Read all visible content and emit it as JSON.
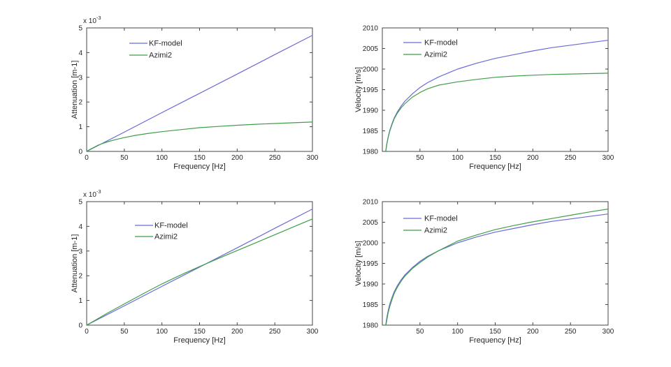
{
  "figure": {
    "kind": "matlab-style figure, 2x2 subplots, no titles, white background",
    "background": "#ffffff"
  },
  "palette": {
    "kf_color": "#6a6ad8",
    "azimi_color": "#3f9e4a",
    "axis_color": "#454545",
    "text_color": "#262626"
  },
  "chart_data": [
    {
      "id": "attenuation-top-left",
      "type": "line",
      "title": "",
      "xlabel": "Frequency [Hz]",
      "ylabel": "Attenuation [m-1]",
      "y_exponent": {
        "base": "x 10",
        "sup": "-3"
      },
      "xlim": [
        0,
        300
      ],
      "ylim": [
        0,
        5
      ],
      "xticks": [
        0,
        50,
        100,
        150,
        200,
        250,
        300
      ],
      "yticks": [
        0,
        1,
        2,
        3,
        4,
        5
      ],
      "grid": false,
      "legend_position": "upper-left-inside-no-box",
      "legend": [
        "KF-model",
        "Azimi2"
      ],
      "series": [
        {
          "name": "KF-model",
          "color_key": "kf_color",
          "x": [
            0,
            50,
            100,
            150,
            200,
            250,
            300
          ],
          "y": [
            0,
            0.78,
            1.57,
            2.35,
            3.13,
            3.92,
            4.7
          ]
        },
        {
          "name": "Azimi2",
          "color_key": "azimi_color",
          "x": [
            0,
            5,
            10,
            15,
            20,
            30,
            40,
            50,
            65,
            80,
            100,
            125,
            150,
            175,
            200,
            225,
            250,
            275,
            300
          ],
          "y": [
            0,
            0.09,
            0.17,
            0.25,
            0.31,
            0.41,
            0.49,
            0.56,
            0.65,
            0.72,
            0.8,
            0.88,
            0.96,
            1.01,
            1.06,
            1.1,
            1.13,
            1.16,
            1.19
          ]
        }
      ]
    },
    {
      "id": "velocity-top-right",
      "type": "line",
      "title": "",
      "xlabel": "Frequency [Hz]",
      "ylabel": "Velocity [m/s]",
      "y_exponent": null,
      "xlim": [
        0,
        300
      ],
      "ylim": [
        1980,
        2010
      ],
      "xticks": [
        50,
        100,
        150,
        200,
        250,
        300
      ],
      "yticks": [
        1980,
        1985,
        1990,
        1995,
        2000,
        2005,
        2010
      ],
      "grid": false,
      "legend_position": "upper-left-inside-no-box",
      "legend": [
        "KF-model",
        "Azimi2"
      ],
      "series": [
        {
          "name": "KF-model",
          "color_key": "kf_color",
          "x": [
            4.5,
            5,
            6,
            8,
            10,
            13,
            16,
            20,
            25,
            30,
            40,
            50,
            60,
            75,
            100,
            125,
            150,
            175,
            200,
            225,
            250,
            275,
            300
          ],
          "y": [
            1980.0,
            1980.7,
            1981.9,
            1983.7,
            1985.2,
            1986.8,
            1988.2,
            1989.6,
            1991.0,
            1992.2,
            1994.0,
            1995.5,
            1996.7,
            1998.1,
            2000.0,
            2001.4,
            2002.6,
            2003.5,
            2004.4,
            2005.2,
            2005.8,
            2006.4,
            2007.0
          ]
        },
        {
          "name": "Azimi2",
          "color_key": "azimi_color",
          "x": [
            4.5,
            5,
            6,
            8,
            10,
            13,
            16,
            20,
            25,
            30,
            40,
            50,
            60,
            75,
            100,
            125,
            150,
            175,
            200,
            225,
            250,
            275,
            300
          ],
          "y": [
            1980.0,
            1980.6,
            1981.8,
            1983.6,
            1985.0,
            1986.6,
            1988.0,
            1989.3,
            1990.6,
            1991.6,
            1993.2,
            1994.3,
            1995.2,
            1996.1,
            1996.9,
            1997.5,
            1998.0,
            1998.3,
            1998.5,
            1998.7,
            1998.8,
            1998.9,
            1999.0
          ]
        }
      ]
    },
    {
      "id": "attenuation-bottom-left",
      "type": "line",
      "title": "",
      "xlabel": "Frequency [Hz]",
      "ylabel": "Attenuation [m-1]",
      "y_exponent": {
        "base": "x 10",
        "sup": "-3"
      },
      "xlim": [
        0,
        300
      ],
      "ylim": [
        0,
        5
      ],
      "xticks": [
        0,
        50,
        100,
        150,
        200,
        250,
        300
      ],
      "yticks": [
        0,
        1,
        2,
        3,
        4,
        5
      ],
      "grid": false,
      "legend_position": "upper-left-inside-no-box",
      "legend": [
        "KF-model",
        "Azimi2"
      ],
      "series": [
        {
          "name": "KF-model",
          "color_key": "kf_color",
          "x": [
            0,
            50,
            100,
            150,
            200,
            250,
            300
          ],
          "y": [
            0,
            0.78,
            1.57,
            2.35,
            3.13,
            3.92,
            4.7
          ]
        },
        {
          "name": "Azimi2",
          "color_key": "azimi_color",
          "x": [
            0,
            25,
            50,
            75,
            100,
            125,
            150,
            175,
            200,
            225,
            250,
            275,
            300
          ],
          "y": [
            0,
            0.44,
            0.86,
            1.27,
            1.67,
            2.03,
            2.37,
            2.7,
            3.02,
            3.34,
            3.66,
            3.98,
            4.3
          ]
        }
      ]
    },
    {
      "id": "velocity-bottom-right",
      "type": "line",
      "title": "",
      "xlabel": "Frequency [Hz]",
      "ylabel": "Velocity [m/s]",
      "y_exponent": null,
      "xlim": [
        0,
        300
      ],
      "ylim": [
        1980,
        2010
      ],
      "xticks": [
        50,
        100,
        150,
        200,
        250,
        300
      ],
      "yticks": [
        1980,
        1985,
        1990,
        1995,
        2000,
        2005,
        2010
      ],
      "grid": false,
      "legend_position": "upper-left-inside-no-box",
      "legend": [
        "KF-model",
        "Azimi2"
      ],
      "series": [
        {
          "name": "KF-model",
          "color_key": "kf_color",
          "x": [
            4.5,
            5,
            6,
            8,
            10,
            13,
            16,
            20,
            25,
            30,
            40,
            50,
            60,
            75,
            100,
            125,
            150,
            175,
            200,
            225,
            250,
            275,
            300
          ],
          "y": [
            1980.0,
            1980.7,
            1981.9,
            1983.7,
            1985.2,
            1986.8,
            1988.2,
            1989.6,
            1991.0,
            1992.2,
            1994.0,
            1995.5,
            1996.7,
            1998.1,
            2000.0,
            2001.4,
            2002.6,
            2003.5,
            2004.4,
            2005.2,
            2005.8,
            2006.4,
            2007.0
          ]
        },
        {
          "name": "Azimi2",
          "color_key": "azimi_color",
          "x": [
            5,
            6,
            8,
            10,
            13,
            16,
            20,
            25,
            30,
            40,
            50,
            60,
            75,
            100,
            125,
            150,
            175,
            200,
            225,
            250,
            275,
            300
          ],
          "y": [
            1980.2,
            1981.3,
            1983.2,
            1984.6,
            1986.3,
            1987.8,
            1989.2,
            1990.7,
            1991.9,
            1993.8,
            1995.2,
            1996.5,
            1998.1,
            2000.4,
            2001.9,
            2003.2,
            2004.2,
            2005.1,
            2005.9,
            2006.7,
            2007.5,
            2008.2
          ]
        }
      ]
    }
  ]
}
